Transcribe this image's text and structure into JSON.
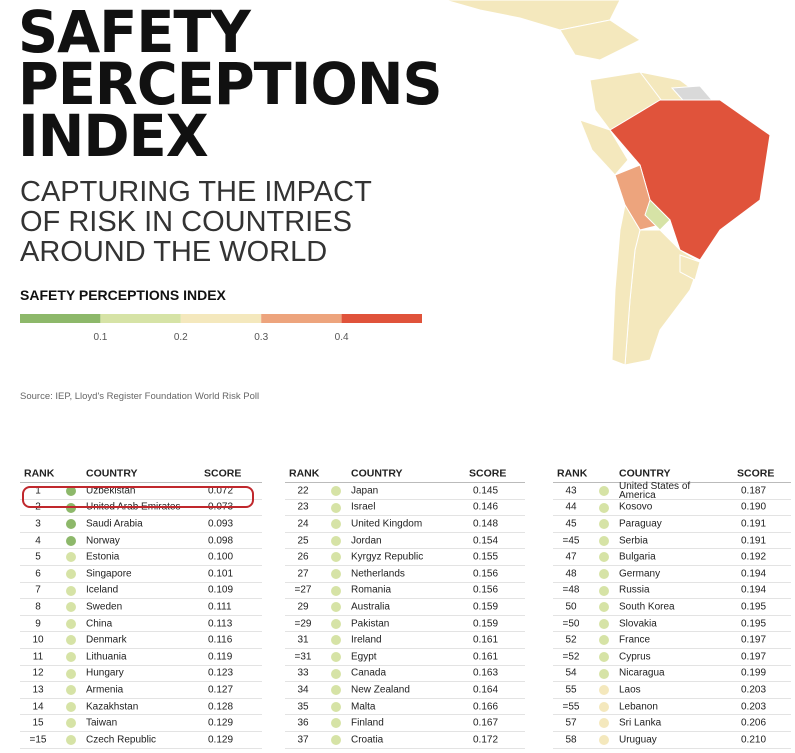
{
  "header": {
    "title_lines": [
      "SAFETY",
      "PERCEPTIONS",
      "INDEX"
    ],
    "subtitle_lines": [
      "CAPTURING THE IMPACT",
      "OF RISK IN COUNTRIES",
      "AROUND THE WORLD"
    ]
  },
  "legend": {
    "title": "SAFETY PERCEPTIONS INDEX",
    "colors": [
      "#8db86a",
      "#d6e3a6",
      "#f4e8bd",
      "#eda47d",
      "#e0533b"
    ],
    "ticks": [
      0.1,
      0.2,
      0.3,
      0.4
    ]
  },
  "source": "Source: IEP, Lloyd's Register Foundation World Risk Poll",
  "tables": [
    {
      "headers": [
        "RANK",
        "COUNTRY",
        "SCORE"
      ],
      "rows": [
        [
          "1",
          "Uzbekistan",
          "0.072"
        ],
        [
          "2",
          "United Arab Emirates",
          "0.073"
        ],
        [
          "3",
          "Saudi Arabia",
          "0.093"
        ],
        [
          "4",
          "Norway",
          "0.098"
        ],
        [
          "5",
          "Estonia",
          "0.100"
        ],
        [
          "6",
          "Singapore",
          "0.101"
        ],
        [
          "7",
          "Iceland",
          "0.109"
        ],
        [
          "8",
          "Sweden",
          "0.111"
        ],
        [
          "9",
          "China",
          "0.113"
        ],
        [
          "10",
          "Denmark",
          "0.116"
        ],
        [
          "11",
          "Lithuania",
          "0.119"
        ],
        [
          "12",
          "Hungary",
          "0.123"
        ],
        [
          "13",
          "Armenia",
          "0.127"
        ],
        [
          "14",
          "Kazakhstan",
          "0.128"
        ],
        [
          "15",
          "Taiwan",
          "0.129"
        ],
        [
          "=15",
          "Czech Republic",
          "0.129"
        ]
      ]
    },
    {
      "headers": [
        "RANK",
        "COUNTRY",
        "SCORE"
      ],
      "rows": [
        [
          "22",
          "Japan",
          "0.145"
        ],
        [
          "23",
          "Israel",
          "0.146"
        ],
        [
          "24",
          "United Kingdom",
          "0.148"
        ],
        [
          "25",
          "Jordan",
          "0.154"
        ],
        [
          "26",
          "Kyrgyz Republic",
          "0.155"
        ],
        [
          "27",
          "Netherlands",
          "0.156"
        ],
        [
          "=27",
          "Romania",
          "0.156"
        ],
        [
          "29",
          "Australia",
          "0.159"
        ],
        [
          "=29",
          "Pakistan",
          "0.159"
        ],
        [
          "31",
          "Ireland",
          "0.161"
        ],
        [
          "=31",
          "Egypt",
          "0.161"
        ],
        [
          "33",
          "Canada",
          "0.163"
        ],
        [
          "34",
          "New Zealand",
          "0.164"
        ],
        [
          "35",
          "Malta",
          "0.166"
        ],
        [
          "36",
          "Finland",
          "0.167"
        ],
        [
          "37",
          "Croatia",
          "0.172"
        ]
      ]
    },
    {
      "headers": [
        "RANK",
        "COUNTRY",
        "SCORE"
      ],
      "rows": [
        [
          "43",
          "United States of America",
          "0.187"
        ],
        [
          "44",
          "Kosovo",
          "0.190"
        ],
        [
          "45",
          "Paraguay",
          "0.191"
        ],
        [
          "=45",
          "Serbia",
          "0.191"
        ],
        [
          "47",
          "Bulgaria",
          "0.192"
        ],
        [
          "48",
          "Germany",
          "0.194"
        ],
        [
          "=48",
          "Russia",
          "0.194"
        ],
        [
          "50",
          "South Korea",
          "0.195"
        ],
        [
          "=50",
          "Slovakia",
          "0.195"
        ],
        [
          "52",
          "France",
          "0.197"
        ],
        [
          "=52",
          "Cyprus",
          "0.197"
        ],
        [
          "54",
          "Nicaragua",
          "0.199"
        ],
        [
          "55",
          "Laos",
          "0.203"
        ],
        [
          "=55",
          "Lebanon",
          "0.203"
        ],
        [
          "57",
          "Sri Lanka",
          "0.206"
        ],
        [
          "58",
          "Uruguay",
          "0.210"
        ]
      ]
    }
  ]
}
